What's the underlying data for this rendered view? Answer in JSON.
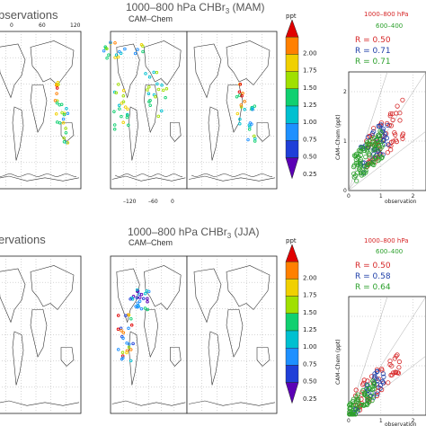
{
  "colors": {
    "obs_line": "#d62728",
    "cam_line": "#1f3fa8",
    "cam2_line": "#2ca02c",
    "colorbar": [
      "#5b00b5",
      "#1f3fd8",
      "#1e90ff",
      "#00c0d0",
      "#10d070",
      "#a0e000",
      "#f0d000",
      "#ff8000",
      "#e00000"
    ]
  },
  "chart_data": [
    {
      "type": "map",
      "season": "MAM",
      "title_prefix": "1000–800 hPa CHBr",
      "title_sub": "3",
      "title_suffix": " (MAM)",
      "panels": [
        "observations",
        "CAM–Chem",
        ""
      ],
      "panel_label_left": "bservations",
      "panel_label_mid": "CAM–Chem",
      "lon_ticks_left": [
        "0",
        "60",
        "120"
      ],
      "lon_ticks_mid": [
        "–120",
        "–60",
        "0"
      ],
      "lon_ticks_bottom": [
        "0",
        "60",
        "120"
      ],
      "colorbar": {
        "unit": "ppt",
        "ticks": [
          "2.00",
          "1.75",
          "1.50",
          "1.25",
          "1.00",
          "0.75",
          "0.50",
          "0.25"
        ]
      }
    },
    {
      "type": "scatter",
      "season": "MAM",
      "header_obs": "1000–800 hPa",
      "header_mod": "600–400",
      "stats": [
        {
          "label": "R  = 0.50",
          "color": "#d62728"
        },
        {
          "label": "R  = 0.71",
          "color": "#1f3fa8"
        },
        {
          "label": "R  = 0.71",
          "color": "#2ca02c"
        }
      ],
      "ylabel": "CAM–Chem (ppt)",
      "xlabel": "observation",
      "x_ticks": [
        "0",
        "1",
        "2"
      ],
      "y_ticks": [
        "0",
        "1",
        "2"
      ],
      "xlim": [
        0,
        2.4
      ],
      "ylim": [
        0,
        2.4
      ]
    },
    {
      "type": "map",
      "season": "JJA",
      "title_prefix": "1000–800 hPa CHBr",
      "title_sub": "3",
      "title_suffix": " (JJA)",
      "panel_label_left": "ervations",
      "panel_label_mid": "CAM–Chem",
      "lon_ticks_mid": [
        "–120",
        "–60",
        "0"
      ],
      "colorbar": {
        "unit": "ppt",
        "ticks": [
          "2.00",
          "1.75",
          "1.50",
          "1.25",
          "1.00",
          "0.75",
          "0.50",
          "0.25"
        ]
      }
    },
    {
      "type": "scatter",
      "season": "JJA",
      "header_obs": "1000–800 hPa",
      "header_mod": "600–400",
      "stats": [
        {
          "label": "R  = 0.50",
          "color": "#d62728"
        },
        {
          "label": "R  = 0.58",
          "color": "#1f3fa8"
        },
        {
          "label": "R  = 0.64",
          "color": "#2ca02c"
        }
      ],
      "ylabel": "CAM–Chem (ppt)",
      "xlabel": "observation",
      "x_ticks": [
        "0",
        "1",
        "2"
      ],
      "xlim": [
        0,
        2.4
      ],
      "ylim": [
        0,
        2.4
      ]
    }
  ]
}
